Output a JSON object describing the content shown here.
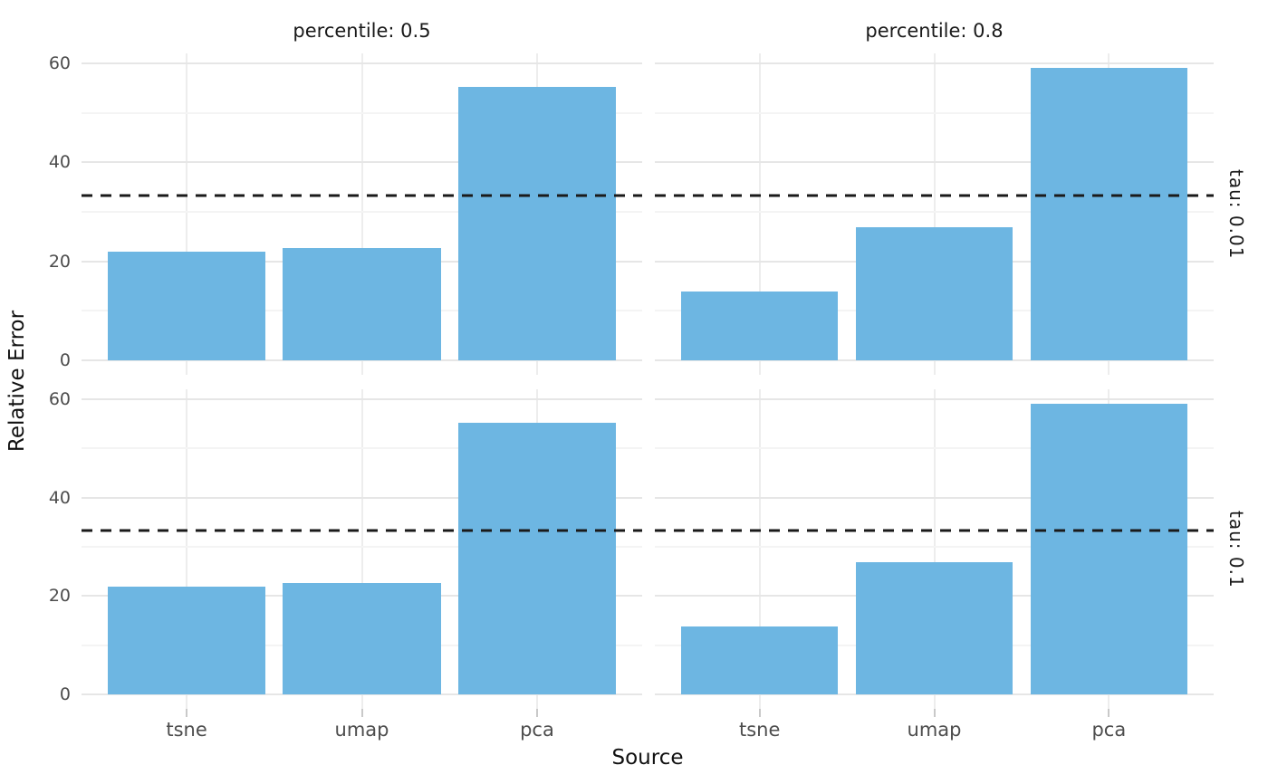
{
  "chart_data": {
    "type": "bar",
    "title": "",
    "xlabel": "Source",
    "ylabel": "Relative Error",
    "categories": [
      "tsne",
      "umap",
      "pca"
    ],
    "col_facets": [
      {
        "label": "percentile: 0.5",
        "value": 0.5
      },
      {
        "label": "percentile: 0.8",
        "value": 0.8
      }
    ],
    "row_facets": [
      {
        "label": "tau: 0.01",
        "value": 0.01
      },
      {
        "label": "tau: 0.1",
        "value": 0.1
      }
    ],
    "panels": [
      {
        "row": "tau: 0.01",
        "col": "percentile: 0.5",
        "values": [
          21.9,
          22.7,
          55.2
        ]
      },
      {
        "row": "tau: 0.01",
        "col": "percentile: 0.8",
        "values": [
          13.9,
          26.9,
          59.1
        ]
      },
      {
        "row": "tau: 0.1",
        "col": "percentile: 0.5",
        "values": [
          21.9,
          22.7,
          55.2
        ]
      },
      {
        "row": "tau: 0.1",
        "col": "percentile: 0.8",
        "values": [
          13.9,
          26.9,
          59.1
        ]
      }
    ],
    "hline": {
      "value": 33.3,
      "style": "dashed",
      "color": "#1a1a1a"
    },
    "y_ticks": [
      0,
      20,
      40,
      60
    ],
    "y_minor_ticks": [
      10,
      30,
      50
    ],
    "ylim": [
      -2.95,
      62.05
    ],
    "bar_color": "#6db6e2",
    "grid": true,
    "legend": "none"
  }
}
